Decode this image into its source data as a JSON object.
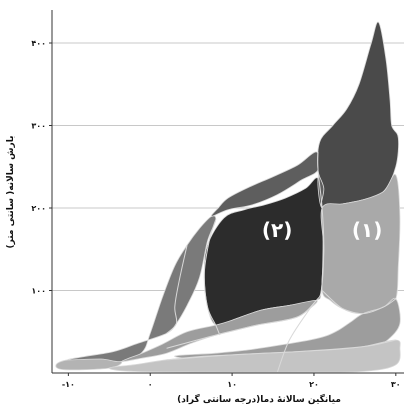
{
  "chart_data": {
    "type": "area",
    "xlabel": "میانگین سالانهٔ دما(درجه سانتی گراد)",
    "ylabel": "بارش سالانه( سانتی متر)",
    "xlim": [
      -12,
      31
    ],
    "ylim": [
      0,
      440
    ],
    "x_ticks": [
      {
        "value": -10,
        "label": "-۱۰"
      },
      {
        "value": 0,
        "label": "۰"
      },
      {
        "value": 10,
        "label": "۱۰"
      },
      {
        "value": 20,
        "label": "۲۰"
      },
      {
        "value": 30,
        "label": "۳۰"
      }
    ],
    "y_ticks": [
      {
        "value": 100,
        "label": "۱۰۰"
      },
      {
        "value": 200,
        "label": "۲۰۰"
      },
      {
        "value": 300,
        "label": "۳۰۰"
      },
      {
        "value": 400,
        "label": "۴۰۰"
      }
    ],
    "grid": true,
    "region_labels": [
      {
        "text": "(۲)",
        "x": 15.5,
        "y": 165
      },
      {
        "text": "(۱)",
        "x": 26.5,
        "y": 165
      }
    ],
    "colors": {
      "background": "#ffffff",
      "plot_background": "#ffffff",
      "grid": "#c8c8c8",
      "boundary": "#d9d9d9",
      "tundra": "#b3b3b3",
      "taiga": "#7a7a7a",
      "temperate_forest": "#2c2c2c",
      "temperate_rainforest": "#5e5e5e",
      "savanna": "#a9a9a9",
      "tropical_rainforest": "#4a4a4a",
      "grassland": "#9d9d9d",
      "desert": "#c4c4c4"
    },
    "regions": [
      {
        "id": "tundra",
        "color_key": "tundra",
        "points": [
          [
            -10.5,
            4
          ],
          [
            -11.5,
            10
          ],
          [
            -10,
            16
          ],
          [
            -6,
            17
          ],
          [
            -3.5,
            14
          ],
          [
            -5,
            6
          ]
        ]
      },
      {
        "id": "taiga",
        "color_key": "taiga",
        "points": [
          [
            -10,
            16
          ],
          [
            -6,
            17
          ],
          [
            -3.5,
            14
          ],
          [
            -1,
            25
          ],
          [
            0,
            48
          ],
          [
            1.5,
            92
          ],
          [
            3,
            130
          ],
          [
            4.5,
            155
          ],
          [
            6,
            175
          ],
          [
            7.5,
            190
          ],
          [
            8,
            185
          ],
          [
            7,
            160
          ],
          [
            6,
            115
          ],
          [
            4.5,
            82
          ],
          [
            3.2,
            60
          ],
          [
            2,
            48
          ],
          [
            -1.5,
            36
          ],
          [
            -4.5,
            26
          ],
          [
            -8,
            20
          ]
        ]
      },
      {
        "id": "temperate-forest",
        "color_key": "temperate_forest",
        "points": [
          [
            7,
            155
          ],
          [
            9,
            188
          ],
          [
            11.5,
            198
          ],
          [
            14,
            204
          ],
          [
            16.5,
            212
          ],
          [
            19,
            224
          ],
          [
            20.5,
            236
          ],
          [
            21,
            200
          ],
          [
            21.1,
            150
          ],
          [
            20.9,
            100
          ],
          [
            20.3,
            88
          ],
          [
            17,
            82
          ],
          [
            13.5,
            76
          ],
          [
            10,
            64
          ],
          [
            8,
            58
          ],
          [
            7,
            80
          ],
          [
            6.6,
            120
          ]
        ]
      },
      {
        "id": "temperate-rainforest",
        "color_key": "temperate_rainforest",
        "points": [
          [
            7.5,
            190
          ],
          [
            9.5,
            198
          ],
          [
            12.5,
            204
          ],
          [
            15.5,
            216
          ],
          [
            18.5,
            234
          ],
          [
            20.5,
            246
          ],
          [
            20.3,
            268
          ],
          [
            18,
            252
          ],
          [
            15,
            238
          ],
          [
            12,
            225
          ],
          [
            9.5,
            212
          ],
          [
            8.3,
            200
          ]
        ]
      },
      {
        "id": "temperate-rainforest-upper",
        "color_key": "temperate_rainforest",
        "points": [
          [
            20.5,
            236
          ],
          [
            21.5,
            250
          ],
          [
            23.5,
            262
          ],
          [
            25.5,
            266
          ],
          [
            27.5,
            262
          ],
          [
            29.5,
            265
          ],
          [
            30,
            270
          ],
          [
            29.5,
            240
          ],
          [
            27.5,
            236
          ],
          [
            25,
            230
          ],
          [
            22.5,
            228
          ],
          [
            21,
            200
          ]
        ]
      },
      {
        "id": "tropical-rainforest",
        "color_key": "tropical_rainforest",
        "points": [
          [
            21,
            200
          ],
          [
            23.5,
            205
          ],
          [
            26,
            210
          ],
          [
            28.5,
            220
          ],
          [
            30,
            250
          ],
          [
            30.3,
            285
          ],
          [
            29.5,
            300
          ],
          [
            29.3,
            330
          ],
          [
            28.8,
            380
          ],
          [
            27.9,
            425
          ],
          [
            27,
            400
          ],
          [
            25.5,
            350
          ],
          [
            24,
            320
          ],
          [
            22.3,
            300
          ],
          [
            20.7,
            280
          ],
          [
            20.5,
            246
          ],
          [
            21.2,
            224
          ]
        ]
      },
      {
        "id": "savanna",
        "color_key": "savanna",
        "points": [
          [
            21,
            100
          ],
          [
            21.2,
            150
          ],
          [
            21,
            200
          ],
          [
            23.5,
            205
          ],
          [
            26,
            210
          ],
          [
            28.5,
            220
          ],
          [
            30,
            240
          ],
          [
            30.5,
            190
          ],
          [
            30.3,
            130
          ],
          [
            30,
            90
          ],
          [
            28.5,
            80
          ],
          [
            26,
            72
          ],
          [
            23.5,
            78
          ],
          [
            22,
            88
          ]
        ]
      },
      {
        "id": "grassland",
        "color_key": "grassland",
        "points": [
          [
            -3.5,
            14
          ],
          [
            -1,
            18
          ],
          [
            2,
            24
          ],
          [
            5,
            36
          ],
          [
            8,
            46
          ],
          [
            10.5,
            52
          ],
          [
            13,
            58
          ],
          [
            16,
            63
          ],
          [
            18,
            68
          ],
          [
            19.5,
            78
          ],
          [
            20.3,
            88
          ],
          [
            17,
            82
          ],
          [
            13.5,
            76
          ],
          [
            10,
            64
          ],
          [
            8,
            58
          ],
          [
            4.5,
            50
          ],
          [
            1.5,
            35
          ],
          [
            -1,
            24
          ]
        ]
      },
      {
        "id": "grassland-lower",
        "color_key": "grassland",
        "points": [
          [
            3,
            20
          ],
          [
            8,
            24
          ],
          [
            12,
            28
          ],
          [
            16,
            34
          ],
          [
            19.5,
            40
          ],
          [
            21.5,
            45
          ],
          [
            23,
            52
          ],
          [
            24.5,
            62
          ],
          [
            26,
            72
          ],
          [
            28.5,
            80
          ],
          [
            30,
            90
          ],
          [
            30.5,
            60
          ],
          [
            29,
            40
          ],
          [
            27,
            30
          ],
          [
            24,
            20
          ],
          [
            20,
            14
          ],
          [
            15,
            10
          ],
          [
            10,
            12
          ]
        ]
      },
      {
        "id": "desert",
        "color_key": "desert",
        "points": [
          [
            -5,
            6
          ],
          [
            -2,
            10
          ],
          [
            2,
            16
          ],
          [
            6,
            20
          ],
          [
            10,
            22
          ],
          [
            14,
            24
          ],
          [
            18,
            26
          ],
          [
            22,
            28
          ],
          [
            26,
            32
          ],
          [
            30,
            40
          ],
          [
            30.5,
            30
          ],
          [
            30,
            10
          ],
          [
            26,
            2
          ],
          [
            18,
            1
          ],
          [
            8,
            1
          ],
          [
            -2,
            2
          ]
        ]
      }
    ],
    "boundaries": [
      [
        [
          8,
          186
        ],
        [
          7.2,
          160
        ],
        [
          6.6,
          120
        ],
        [
          7,
          80
        ],
        [
          8,
          58
        ],
        [
          8.5,
          46
        ]
      ],
      [
        [
          20.5,
          268
        ],
        [
          20.5,
          246
        ],
        [
          21,
          200
        ],
        [
          21.2,
          150
        ],
        [
          20.9,
          100
        ],
        [
          20.3,
          88
        ],
        [
          19.5,
          78
        ],
        [
          17,
          40
        ],
        [
          15.5,
          0
        ]
      ],
      [
        [
          21,
          100
        ],
        [
          23.5,
          78
        ],
        [
          26,
          72
        ],
        [
          28.5,
          80
        ],
        [
          30,
          90
        ]
      ],
      [
        [
          4.5,
          155
        ],
        [
          3.5,
          110
        ],
        [
          3,
          80
        ],
        [
          3.2,
          60
        ],
        [
          2,
          48
        ]
      ],
      [
        [
          2,
          30
        ],
        [
          8,
          46
        ],
        [
          13,
          58
        ],
        [
          18,
          68
        ],
        [
          20.3,
          88
        ]
      ],
      [
        [
          2,
          16
        ],
        [
          10,
          22
        ],
        [
          18,
          26
        ],
        [
          26,
          32
        ],
        [
          30,
          40
        ]
      ]
    ]
  }
}
